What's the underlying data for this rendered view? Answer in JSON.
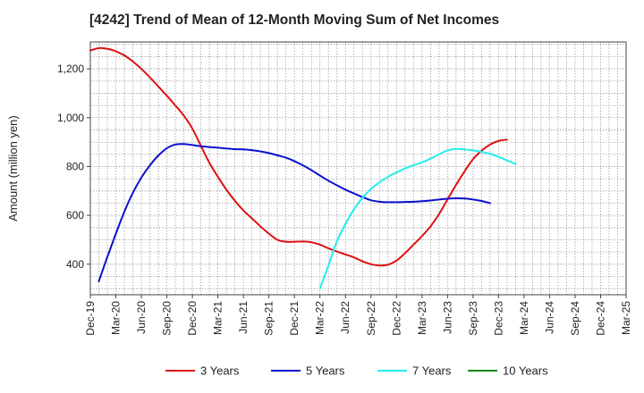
{
  "chart_data": {
    "type": "line",
    "title": "[4242]  Trend of Mean of 12-Month Moving Sum of Net Incomes",
    "xlabel": "",
    "ylabel": "Amount (million yen)",
    "ylim": [
      275,
      1310
    ],
    "yticks": [
      400,
      600,
      800,
      1000,
      1200
    ],
    "ytick_labels": [
      "400",
      "600",
      "800",
      "1,000",
      "1,200"
    ],
    "x_categories": [
      "Dec-19",
      "Mar-20",
      "Jun-20",
      "Sep-20",
      "Dec-20",
      "Mar-21",
      "Jun-21",
      "Sep-21",
      "Dec-21",
      "Mar-22",
      "Jun-22",
      "Sep-22",
      "Dec-22",
      "Mar-23",
      "Jun-23",
      "Sep-23",
      "Dec-23",
      "Mar-24",
      "Jun-24",
      "Sep-24",
      "Dec-24",
      "Mar-25"
    ],
    "grid": true,
    "legend_position": "bottom",
    "series": [
      {
        "name": "3 Years",
        "color": "#dd1111",
        "start_index": 0,
        "values": [
          1275,
          1285,
          1282,
          1272,
          1255,
          1230,
          1200,
          1165,
          1128,
          1090,
          1050,
          1008,
          955,
          885,
          815,
          758,
          705,
          660,
          620,
          588,
          555,
          525,
          500,
          492,
          492,
          493,
          490,
          480,
          465,
          452,
          440,
          428,
          412,
          400,
          395,
          398,
          415,
          445,
          480,
          515,
          555,
          605,
          665,
          725,
          780,
          830,
          865,
          890,
          905,
          910
        ]
      },
      {
        "name": "5 Years",
        "color": "#0b11cc",
        "start_index": 1,
        "values": [
          330,
          430,
          525,
          615,
          692,
          755,
          805,
          845,
          875,
          890,
          892,
          888,
          883,
          880,
          877,
          874,
          871,
          870,
          867,
          862,
          855,
          846,
          836,
          822,
          805,
          785,
          763,
          742,
          723,
          705,
          690,
          675,
          662,
          656,
          654,
          654,
          655,
          656,
          658,
          661,
          665,
          668,
          670,
          669,
          665,
          659,
          650
        ]
      },
      {
        "name": "7 Years",
        "color": "#22eeee",
        "start_index": 27,
        "values": [
          300,
          395,
          495,
          565,
          625,
          672,
          708,
          735,
          758,
          776,
          792,
          805,
          817,
          832,
          850,
          866,
          872,
          870,
          866,
          860,
          852,
          840,
          825,
          810
        ]
      },
      {
        "name": "10 Years",
        "color": "#118811",
        "start_index": 0,
        "values": []
      }
    ]
  }
}
